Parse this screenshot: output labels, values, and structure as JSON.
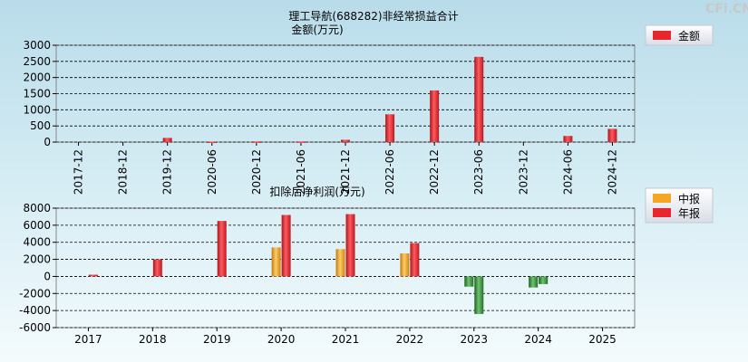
{
  "watermark": "CFi.CN",
  "chart_data": [
    {
      "type": "bar",
      "title": "理工导航(688282)非经常损益合计",
      "subtitle": "金额(万元)",
      "categories": [
        "2017-12",
        "2018-12",
        "2019-12",
        "2020-06",
        "2020-12",
        "2021-06",
        "2021-12",
        "2022-06",
        "2022-12",
        "2023-06",
        "2023-12",
        "2024-06",
        "2024-12"
      ],
      "series": [
        {
          "name": "金额",
          "color": "#e8262d",
          "values": [
            0,
            0,
            130,
            15,
            20,
            20,
            70,
            860,
            1600,
            2640,
            0,
            190,
            410
          ]
        }
      ],
      "ylim": [
        0,
        3000
      ],
      "yticks": [
        0,
        500,
        1000,
        1500,
        2000,
        2500,
        3000
      ],
      "grid": true,
      "legend": "top-right"
    },
    {
      "type": "bar",
      "title": "扣除后净利润(万元)",
      "categories": [
        "2017",
        "2018",
        "2019",
        "2020",
        "2021",
        "2022",
        "2023",
        "2024",
        "2025"
      ],
      "series": [
        {
          "name": "中报",
          "color": "#f5a623",
          "values": [
            null,
            null,
            null,
            3400,
            3200,
            2700,
            -1200,
            -1300,
            null
          ]
        },
        {
          "name": "年报",
          "color": "#e8262d",
          "values": [
            200,
            2000,
            6500,
            7200,
            7300,
            3900,
            -4400,
            -900,
            null
          ]
        }
      ],
      "ylim": [
        -6000,
        8000
      ],
      "yticks": [
        -6000,
        -4000,
        -2000,
        0,
        2000,
        4000,
        6000,
        8000
      ],
      "grid": true,
      "legend": "top-right"
    }
  ]
}
